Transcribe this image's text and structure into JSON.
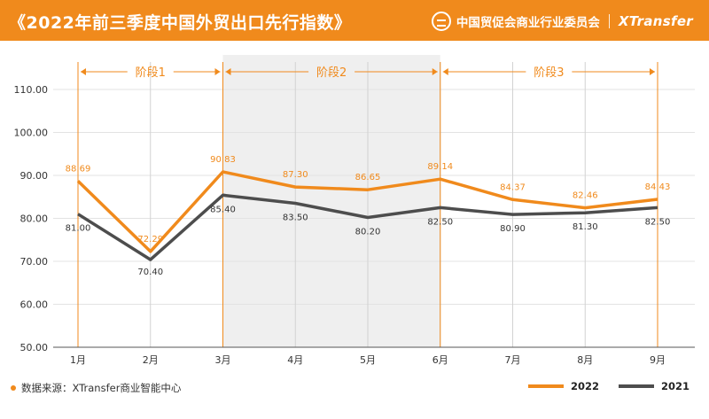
{
  "header": {
    "title": "《2022年前三季度中国外贸出口先行指数》",
    "org": "中国贸促会商业行业委员会",
    "brand": "XTransfer"
  },
  "source": "数据来源：XTransfer商业智能中心",
  "colors": {
    "header_bg": "#f08a1c",
    "series_2022": "#f08a1c",
    "series_2021": "#4d4d4d",
    "phase_bg": "#efefef",
    "phase_label": "#f08a1c"
  },
  "chart_data": {
    "type": "line",
    "categories": [
      "1月",
      "2月",
      "3月",
      "4月",
      "5月",
      "6月",
      "7月",
      "8月",
      "9月"
    ],
    "series": [
      {
        "name": "2022",
        "values": [
          88.69,
          72.29,
          90.83,
          87.3,
          86.65,
          89.14,
          84.37,
          82.46,
          84.43
        ],
        "labels": [
          "88.69",
          "72.29",
          "90.83",
          "87.30",
          "86.65",
          "89.14",
          "84.37",
          "82.46",
          "84.43"
        ]
      },
      {
        "name": "2021",
        "values": [
          81.0,
          70.4,
          85.4,
          83.5,
          80.2,
          82.5,
          80.9,
          81.3,
          82.5
        ],
        "labels": [
          "81.00",
          "70.40",
          "85.40",
          "83.50",
          "80.20",
          "82.50",
          "80.90",
          "81.30",
          "82.50"
        ]
      }
    ],
    "yticks": [
      "50.00",
      "60.00",
      "70.00",
      "80.00",
      "90.00",
      "100.00",
      "110.00"
    ],
    "ylim": [
      50,
      112
    ],
    "phases": [
      {
        "label": "阶段1",
        "start": 0,
        "end": 2
      },
      {
        "label": "阶段2",
        "start": 2,
        "end": 5
      },
      {
        "label": "阶段3",
        "start": 5,
        "end": 8
      }
    ],
    "legend_position": "bottom-right"
  }
}
